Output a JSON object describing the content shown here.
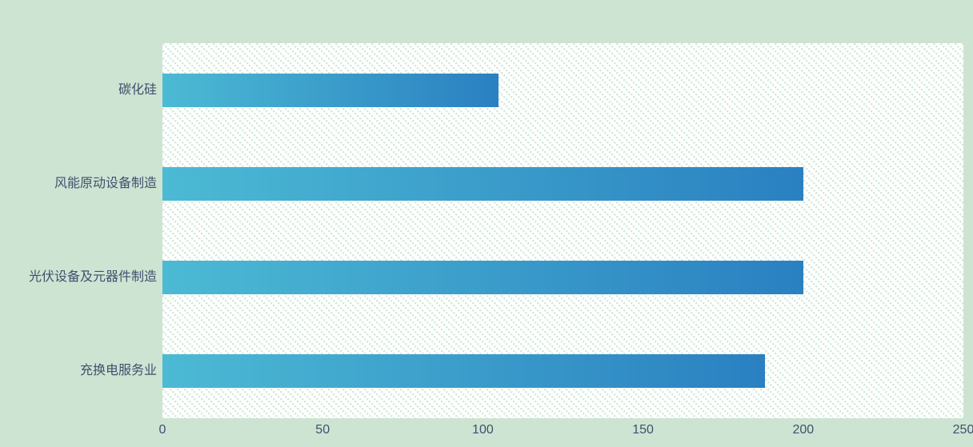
{
  "colors": {
    "page_background": "#cde4d2",
    "plot_background": "#ffffff",
    "hatch_dot": "#d3e9da",
    "bar_gradient_start": "#4cbad4",
    "bar_gradient_end": "#2a80c1",
    "axis_text": "#41506e"
  },
  "chart_data": {
    "type": "bar",
    "orientation": "horizontal",
    "categories": [
      "碳化硅",
      "风能原动设备制造",
      "光伏设备及元器件制造",
      "充换电服务业"
    ],
    "values": [
      105,
      200,
      200,
      188
    ],
    "xlim": [
      0,
      250
    ],
    "x_ticks": [
      0,
      50,
      100,
      150,
      200,
      250
    ],
    "grid": false,
    "legend": false,
    "plot_texture": "diagonal-dot-hatch"
  }
}
